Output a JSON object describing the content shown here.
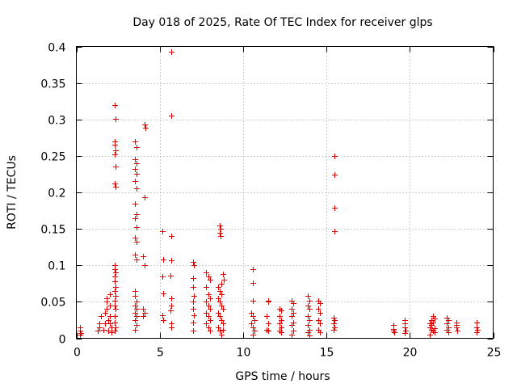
{
  "chart_data": {
    "type": "scatter",
    "title": "Day 018 of 2025, Rate Of TEC Index for receiver glps",
    "xlabel": "GPS time / hours",
    "ylabel": "ROTI / TECUs",
    "xlim": [
      0,
      25
    ],
    "ylim": [
      0,
      0.4
    ],
    "xticks": [
      0,
      5,
      10,
      15,
      20,
      25
    ],
    "xtick_labels": [
      "0",
      "5",
      "10",
      "15",
      "20",
      "25"
    ],
    "yticks": [
      0,
      0.05,
      0.1,
      0.15,
      0.2,
      0.25,
      0.3,
      0.35,
      0.4
    ],
    "ytick_labels": [
      "0",
      "0.05",
      "0.1",
      "0.15",
      "0.2",
      "0.25",
      "0.3",
      "0.35",
      "0.4"
    ],
    "grid": true,
    "marker": "plus",
    "marker_color": "#e00000",
    "series": [
      {
        "name": "ROTI",
        "points": [
          [
            0.2,
            0.005
          ],
          [
            0.2,
            0.01
          ],
          [
            0.2,
            0.015
          ],
          [
            0.25,
            0.007
          ],
          [
            1.3,
            0.01
          ],
          [
            1.4,
            0.015
          ],
          [
            1.4,
            0.02
          ],
          [
            1.5,
            0.03
          ],
          [
            1.6,
            0.012
          ],
          [
            1.7,
            0.02
          ],
          [
            1.7,
            0.035
          ],
          [
            1.8,
            0.04
          ],
          [
            1.8,
            0.05
          ],
          [
            1.8,
            0.055
          ],
          [
            1.9,
            0.01
          ],
          [
            1.9,
            0.025
          ],
          [
            2.0,
            0.02
          ],
          [
            2.0,
            0.03
          ],
          [
            2.0,
            0.045
          ],
          [
            2.0,
            0.06
          ],
          [
            2.1,
            0.008
          ],
          [
            2.1,
            0.015
          ],
          [
            2.3,
            0.32
          ],
          [
            2.35,
            0.301
          ],
          [
            2.3,
            0.27
          ],
          [
            2.3,
            0.265
          ],
          [
            2.35,
            0.258
          ],
          [
            2.3,
            0.252
          ],
          [
            2.35,
            0.236
          ],
          [
            2.3,
            0.212
          ],
          [
            2.35,
            0.208
          ],
          [
            2.3,
            0.1
          ],
          [
            2.3,
            0.095
          ],
          [
            2.35,
            0.09
          ],
          [
            2.3,
            0.085
          ],
          [
            2.3,
            0.078
          ],
          [
            2.35,
            0.07
          ],
          [
            2.3,
            0.065
          ],
          [
            2.35,
            0.058
          ],
          [
            2.3,
            0.052
          ],
          [
            2.3,
            0.045
          ],
          [
            2.35,
            0.04
          ],
          [
            2.3,
            0.03
          ],
          [
            2.3,
            0.022
          ],
          [
            2.35,
            0.015
          ],
          [
            2.3,
            0.01
          ],
          [
            3.5,
            0.27
          ],
          [
            3.6,
            0.262
          ],
          [
            3.5,
            0.245
          ],
          [
            3.6,
            0.24
          ],
          [
            3.5,
            0.232
          ],
          [
            3.6,
            0.225
          ],
          [
            3.5,
            0.215
          ],
          [
            3.6,
            0.205
          ],
          [
            3.5,
            0.185
          ],
          [
            3.6,
            0.17
          ],
          [
            3.5,
            0.165
          ],
          [
            3.6,
            0.152
          ],
          [
            3.5,
            0.138
          ],
          [
            3.6,
            0.132
          ],
          [
            3.5,
            0.115
          ],
          [
            3.6,
            0.108
          ],
          [
            3.5,
            0.065
          ],
          [
            3.5,
            0.058
          ],
          [
            3.6,
            0.05
          ],
          [
            3.5,
            0.045
          ],
          [
            3.6,
            0.04
          ],
          [
            3.5,
            0.035
          ],
          [
            3.6,
            0.03
          ],
          [
            3.5,
            0.025
          ],
          [
            3.6,
            0.018
          ],
          [
            3.5,
            0.012
          ],
          [
            4.1,
            0.293
          ],
          [
            4.15,
            0.289
          ],
          [
            4.1,
            0.193
          ],
          [
            4.0,
            0.112
          ],
          [
            4.1,
            0.1
          ],
          [
            4.0,
            0.04
          ],
          [
            4.1,
            0.035
          ],
          [
            4.0,
            0.03
          ],
          [
            5.15,
            0.147
          ],
          [
            5.2,
            0.108
          ],
          [
            5.15,
            0.085
          ],
          [
            5.2,
            0.062
          ],
          [
            5.15,
            0.032
          ],
          [
            5.2,
            0.025
          ],
          [
            5.7,
            0.393
          ],
          [
            5.7,
            0.305
          ],
          [
            5.7,
            0.14
          ],
          [
            5.7,
            0.107
          ],
          [
            5.65,
            0.086
          ],
          [
            5.7,
            0.055
          ],
          [
            5.7,
            0.045
          ],
          [
            5.65,
            0.038
          ],
          [
            5.7,
            0.02
          ],
          [
            5.7,
            0.015
          ],
          [
            7.0,
            0.105
          ],
          [
            7.05,
            0.1
          ],
          [
            7.0,
            0.082
          ],
          [
            7.0,
            0.07
          ],
          [
            7.05,
            0.058
          ],
          [
            7.0,
            0.05
          ],
          [
            7.0,
            0.04
          ],
          [
            7.05,
            0.032
          ],
          [
            7.0,
            0.022
          ],
          [
            7.0,
            0.01
          ],
          [
            7.8,
            0.09
          ],
          [
            7.9,
            0.085
          ],
          [
            8.0,
            0.08
          ],
          [
            7.8,
            0.07
          ],
          [
            7.9,
            0.06
          ],
          [
            8.0,
            0.055
          ],
          [
            7.8,
            0.05
          ],
          [
            7.9,
            0.045
          ],
          [
            8.0,
            0.04
          ],
          [
            7.8,
            0.035
          ],
          [
            7.9,
            0.03
          ],
          [
            8.0,
            0.025
          ],
          [
            7.8,
            0.02
          ],
          [
            7.9,
            0.015
          ],
          [
            8.0,
            0.01
          ],
          [
            8.6,
            0.155
          ],
          [
            8.65,
            0.15
          ],
          [
            8.6,
            0.145
          ],
          [
            8.65,
            0.14
          ],
          [
            8.5,
            0.07
          ],
          [
            8.6,
            0.065
          ],
          [
            8.7,
            0.06
          ],
          [
            8.8,
            0.088
          ],
          [
            8.85,
            0.08
          ],
          [
            8.7,
            0.075
          ],
          [
            8.5,
            0.055
          ],
          [
            8.6,
            0.05
          ],
          [
            8.7,
            0.045
          ],
          [
            8.8,
            0.04
          ],
          [
            8.5,
            0.035
          ],
          [
            8.6,
            0.03
          ],
          [
            8.7,
            0.025
          ],
          [
            8.8,
            0.02
          ],
          [
            8.5,
            0.015
          ],
          [
            8.6,
            0.01
          ],
          [
            8.7,
            0.005
          ],
          [
            8.8,
            0.012
          ],
          [
            10.6,
            0.095
          ],
          [
            10.6,
            0.076
          ],
          [
            10.6,
            0.052
          ],
          [
            10.5,
            0.035
          ],
          [
            10.6,
            0.03
          ],
          [
            10.7,
            0.025
          ],
          [
            10.5,
            0.02
          ],
          [
            10.6,
            0.015
          ],
          [
            10.7,
            0.01
          ],
          [
            10.6,
            0.005
          ],
          [
            11.5,
            0.052
          ],
          [
            11.5,
            0.05
          ],
          [
            11.4,
            0.03
          ],
          [
            11.5,
            0.02
          ],
          [
            11.4,
            0.012
          ],
          [
            11.5,
            0.01
          ],
          [
            12.2,
            0.04
          ],
          [
            12.3,
            0.038
          ],
          [
            12.2,
            0.03
          ],
          [
            12.3,
            0.025
          ],
          [
            12.2,
            0.02
          ],
          [
            12.3,
            0.015
          ],
          [
            12.2,
            0.01
          ],
          [
            12.3,
            0.008
          ],
          [
            12.9,
            0.052
          ],
          [
            13.0,
            0.048
          ],
          [
            12.9,
            0.04
          ],
          [
            13.0,
            0.035
          ],
          [
            12.9,
            0.03
          ],
          [
            13.0,
            0.022
          ],
          [
            12.9,
            0.018
          ],
          [
            13.0,
            0.01
          ],
          [
            12.9,
            0.005
          ],
          [
            13.9,
            0.058
          ],
          [
            14.0,
            0.052
          ],
          [
            13.9,
            0.045
          ],
          [
            14.0,
            0.04
          ],
          [
            13.9,
            0.03
          ],
          [
            14.0,
            0.025
          ],
          [
            13.9,
            0.018
          ],
          [
            14.0,
            0.012
          ],
          [
            13.9,
            0.008
          ],
          [
            14.0,
            0.004
          ],
          [
            14.5,
            0.052
          ],
          [
            14.6,
            0.048
          ],
          [
            14.5,
            0.04
          ],
          [
            14.6,
            0.035
          ],
          [
            14.5,
            0.025
          ],
          [
            14.6,
            0.02
          ],
          [
            14.5,
            0.012
          ],
          [
            14.6,
            0.008
          ],
          [
            15.5,
            0.25
          ],
          [
            15.5,
            0.224
          ],
          [
            15.5,
            0.179
          ],
          [
            15.5,
            0.147
          ],
          [
            15.45,
            0.028
          ],
          [
            15.5,
            0.025
          ],
          [
            15.45,
            0.02
          ],
          [
            15.5,
            0.015
          ],
          [
            15.45,
            0.012
          ],
          [
            19.0,
            0.018
          ],
          [
            19.0,
            0.013
          ],
          [
            19.0,
            0.01
          ],
          [
            19.05,
            0.008
          ],
          [
            19.7,
            0.025
          ],
          [
            19.7,
            0.02
          ],
          [
            19.7,
            0.015
          ],
          [
            19.75,
            0.01
          ],
          [
            19.7,
            0.007
          ],
          [
            21.2,
            0.02
          ],
          [
            21.3,
            0.025
          ],
          [
            21.4,
            0.03
          ],
          [
            21.5,
            0.027
          ],
          [
            21.2,
            0.015
          ],
          [
            21.3,
            0.012
          ],
          [
            21.4,
            0.01
          ],
          [
            21.5,
            0.008
          ],
          [
            21.2,
            0.005
          ],
          [
            21.3,
            0.018
          ],
          [
            21.4,
            0.022
          ],
          [
            21.5,
            0.014
          ],
          [
            22.2,
            0.028
          ],
          [
            22.3,
            0.025
          ],
          [
            22.2,
            0.02
          ],
          [
            22.3,
            0.015
          ],
          [
            22.2,
            0.012
          ],
          [
            22.3,
            0.008
          ],
          [
            22.8,
            0.022
          ],
          [
            22.8,
            0.018
          ],
          [
            22.8,
            0.015
          ],
          [
            22.85,
            0.01
          ],
          [
            24.0,
            0.022
          ],
          [
            24.0,
            0.015
          ],
          [
            24.05,
            0.012
          ],
          [
            24.0,
            0.008
          ]
        ]
      }
    ]
  }
}
